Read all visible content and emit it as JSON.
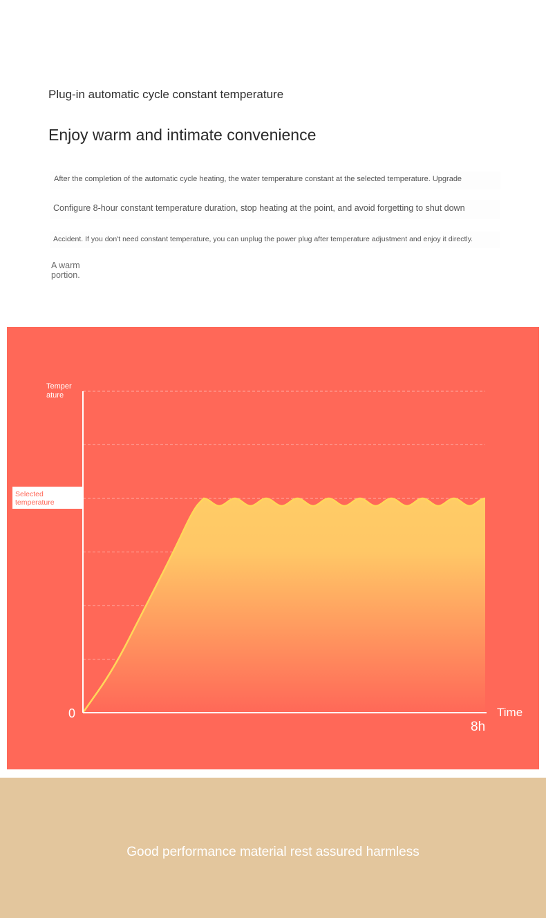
{
  "header": {
    "subtitle": "Plug-in automatic cycle constant temperature",
    "title": "Enjoy warm and intimate convenience"
  },
  "description": {
    "line1": "After the completion of the automatic cycle heating, the water temperature constant at the selected temperature. Upgrade",
    "line2": "Configure 8-hour constant temperature duration, stop heating at the point, and avoid forgetting to shut down",
    "line3": "Accident. If you don't need constant temperature, you can unplug the power plug after temperature adjustment and enjoy it directly.",
    "note": "A warm portion."
  },
  "chart_data": {
    "type": "area",
    "ylabel": "Temper ature",
    "xlabel": "Time",
    "y_origin_label": "0",
    "x_end_label": "8h",
    "selected_label": "Selected temperature",
    "x_range": [
      0,
      8
    ],
    "y_range": [
      0,
      6
    ],
    "selected_level": 4,
    "ramp_points": [
      [
        0,
        0
      ],
      [
        0.6,
        0.8
      ],
      [
        1.2,
        1.9
      ],
      [
        1.8,
        3.0
      ],
      [
        2.2,
        3.8
      ],
      [
        2.4,
        4.0
      ]
    ],
    "oscillation": {
      "start": 2.4,
      "end": 8,
      "cycles": 9,
      "amplitude": 0.07
    },
    "grid": true,
    "colors": {
      "background": "#ff6858",
      "line": "#ffd75a",
      "fill_top": "#ffcc66",
      "fill_bottom": "#ff6858",
      "axis": "#ffffff",
      "label_box": "#ffffff",
      "label_text": "#ff6858"
    }
  },
  "footer": {
    "text": "Good performance material rest assured harmless",
    "background": "#e3c69d"
  }
}
